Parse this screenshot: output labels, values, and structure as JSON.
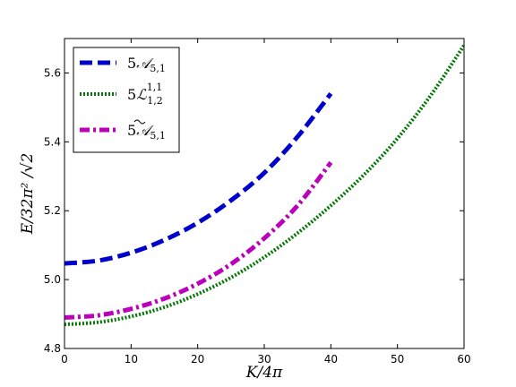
{
  "chart_data": {
    "type": "line",
    "title": "",
    "xlabel": "K/4π",
    "ylabel": "E/32π² /√2",
    "xlim": [
      0,
      60
    ],
    "ylim": [
      4.8,
      5.7
    ],
    "x_ticks": [
      "0",
      "10",
      "20",
      "30",
      "40",
      "50",
      "60"
    ],
    "y_ticks": [
      "4.8",
      "5.0",
      "5.2",
      "5.4",
      "5.6"
    ],
    "grid": false,
    "legend_position": "top-left",
    "series": [
      {
        "name": "5𝒜5,1",
        "color": "#0000cc",
        "style": "dashed",
        "x": [
          0,
          5,
          10,
          15,
          20,
          25,
          30,
          35,
          40
        ],
        "y": [
          5.047,
          5.055,
          5.078,
          5.115,
          5.165,
          5.23,
          5.31,
          5.415,
          5.54
        ]
      },
      {
        "name": "5ℒ1,2 1,1",
        "color": "#007700",
        "style": "dotted",
        "x": [
          0,
          5,
          10,
          15,
          20,
          25,
          30,
          35,
          40,
          45,
          50,
          55,
          60
        ],
        "y": [
          4.87,
          4.876,
          4.893,
          4.92,
          4.958,
          5.006,
          5.065,
          5.135,
          5.215,
          5.305,
          5.41,
          5.535,
          5.68
        ]
      },
      {
        "name": "5𝒜̃5,1",
        "color": "#bb00bb",
        "style": "dashdot",
        "x": [
          0,
          5,
          10,
          15,
          20,
          25,
          30,
          35,
          40
        ],
        "y": [
          4.89,
          4.896,
          4.915,
          4.945,
          4.988,
          5.045,
          5.12,
          5.215,
          5.34
        ]
      }
    ]
  }
}
